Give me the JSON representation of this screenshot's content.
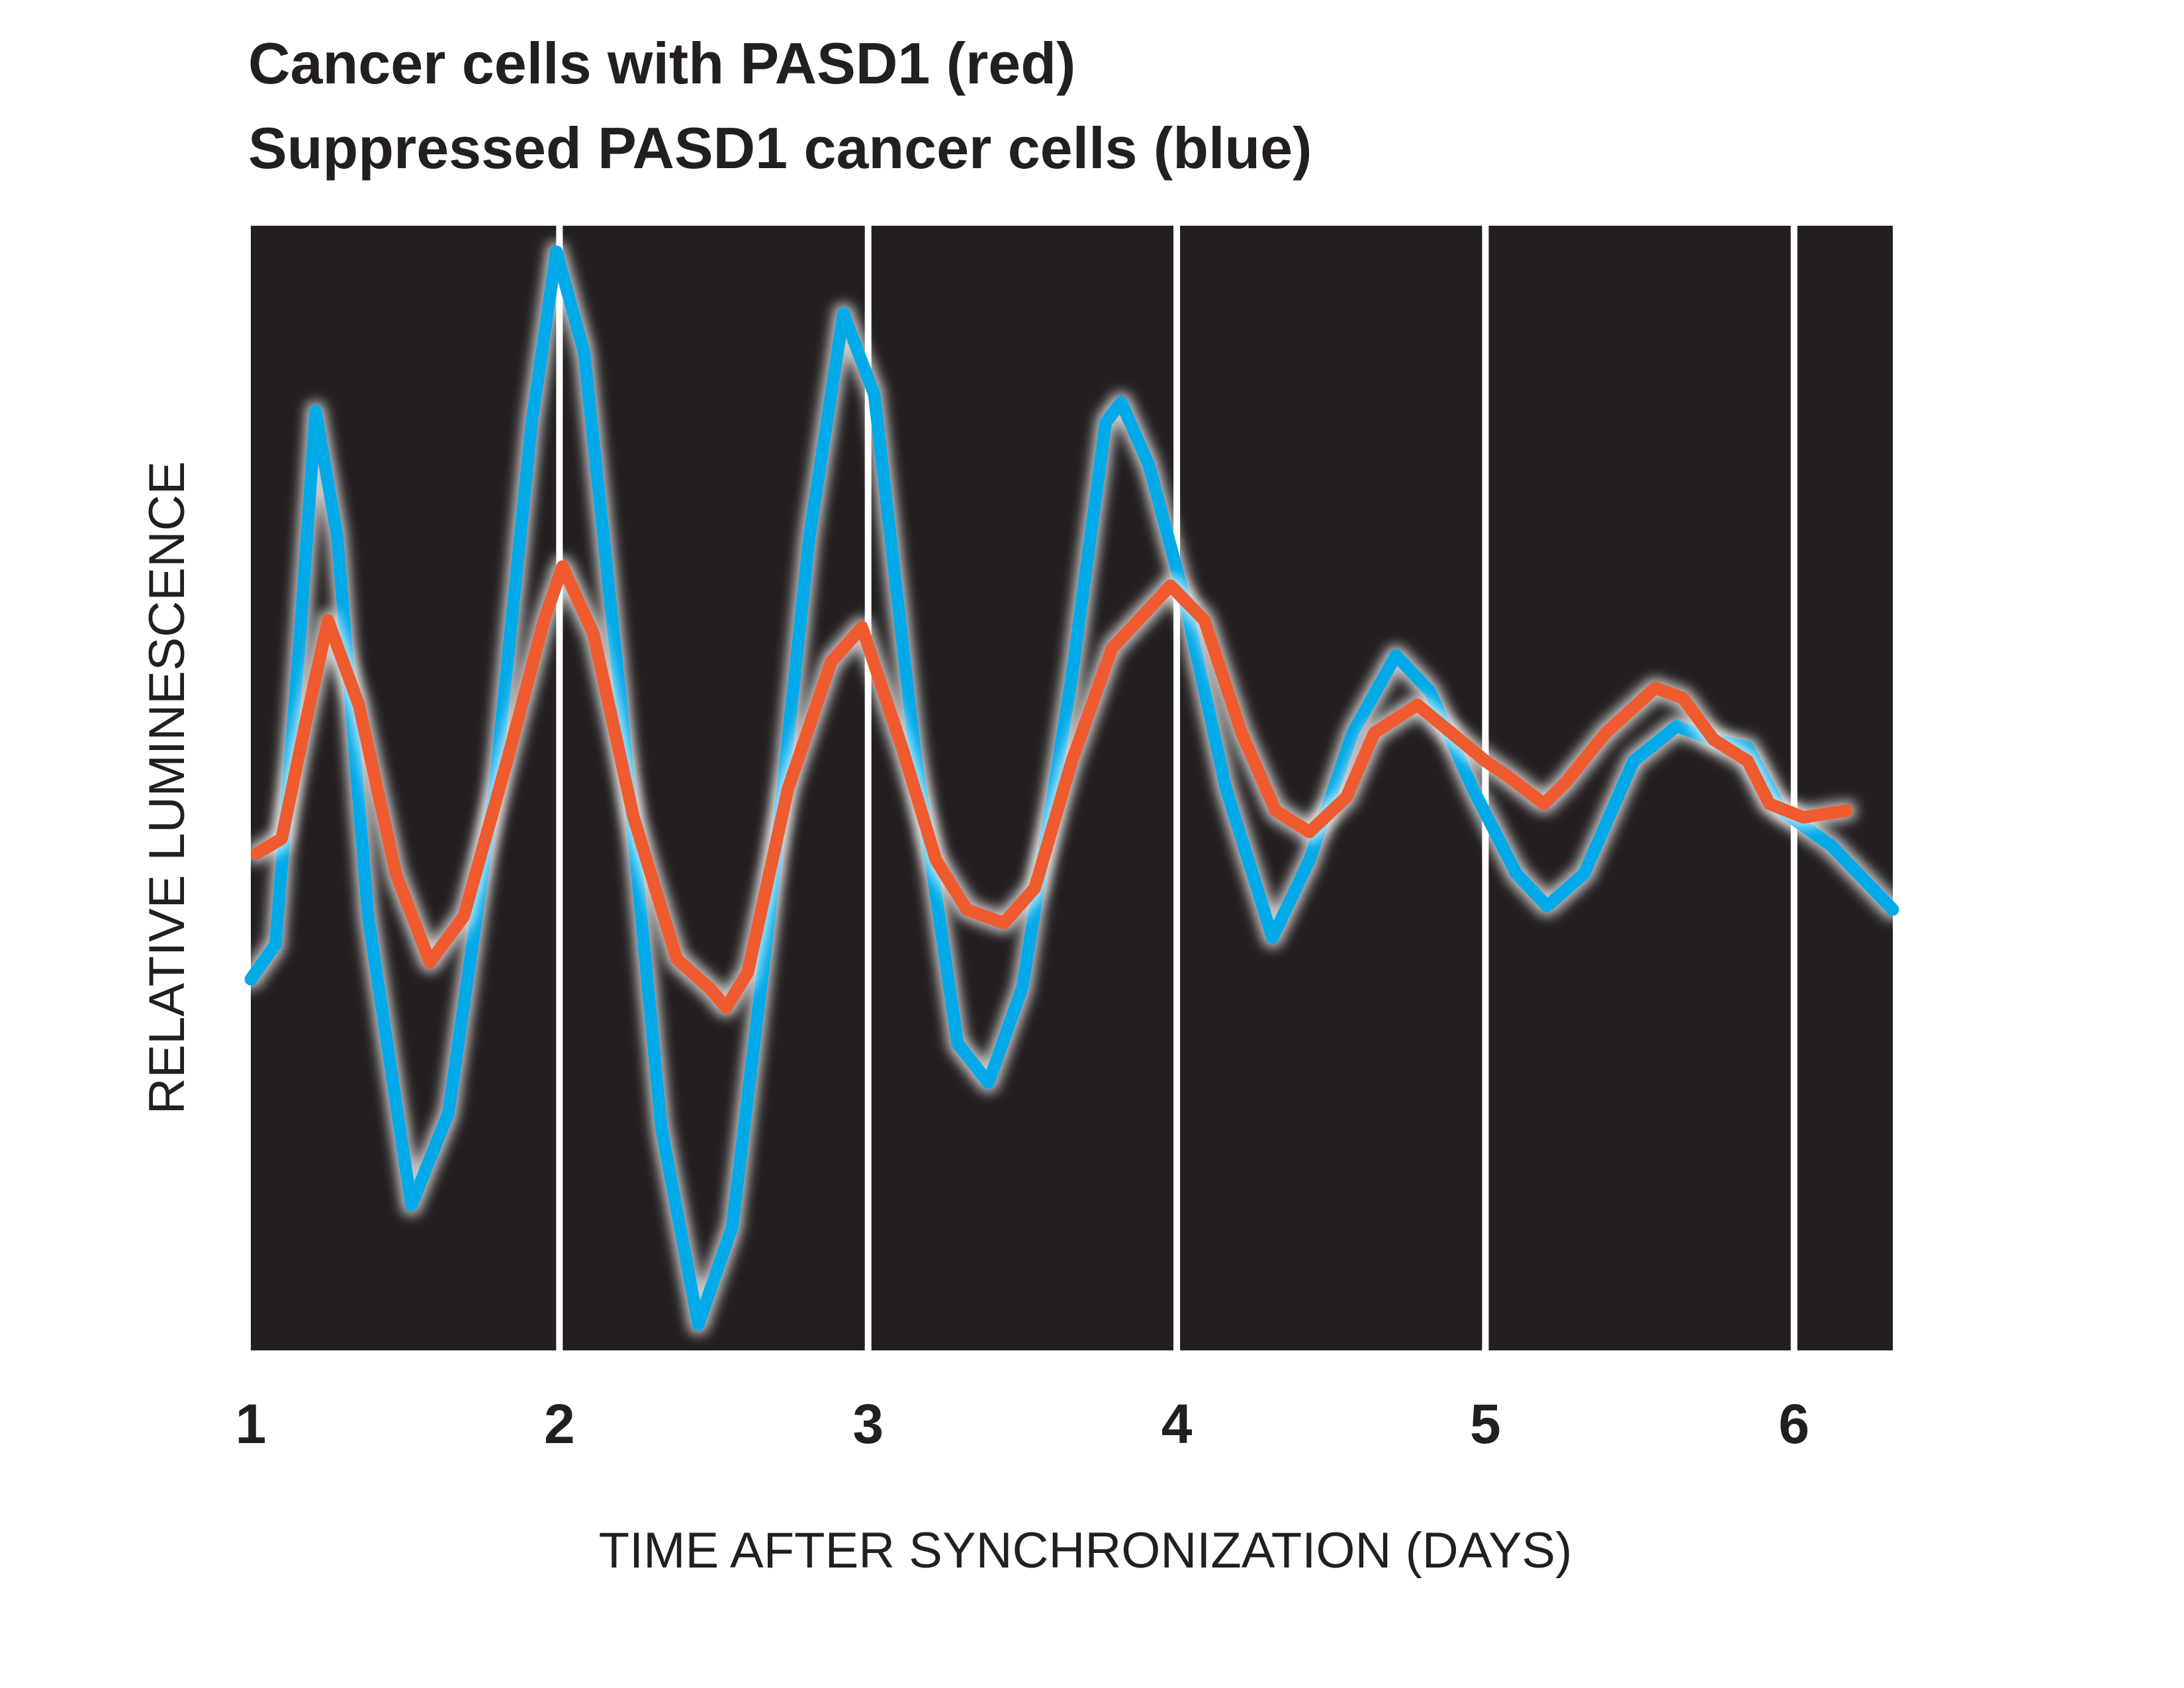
{
  "chart_data": {
    "type": "line",
    "title": [
      "Cancer cells with PASD1 (red)",
      "Suppressed PASD1 cancer cells (blue)"
    ],
    "xlabel": "TIME AFTER SYNCHRONIZATION (DAYS)",
    "ylabel": "RELATIVE LUMINESCENCE",
    "xlim": [
      1,
      6.32
    ],
    "xticks": [
      1,
      2,
      3,
      4,
      5,
      6
    ],
    "ylim": [
      0,
      100
    ],
    "grid": true,
    "background": "#231f20",
    "grid_color": "#ffffff",
    "series": [
      {
        "color": "#00a9e8",
        "x": [
          1.0,
          1.08,
          1.16,
          1.21,
          1.28,
          1.38,
          1.52,
          1.64,
          1.79,
          1.91,
          1.99,
          2.08,
          2.2,
          2.33,
          2.45,
          2.56,
          2.68,
          2.81,
          2.92,
          3.02,
          3.15,
          3.29,
          3.39,
          3.5,
          3.66,
          3.77,
          3.82,
          3.91,
          4.02,
          4.16,
          4.31,
          4.43,
          4.57,
          4.71,
          4.82,
          4.96,
          5.1,
          5.2,
          5.32,
          5.48,
          5.62,
          5.74,
          5.85,
          5.96,
          6.12,
          6.32
        ],
        "values": [
          33.0,
          36.1,
          63.7,
          83.5,
          72.4,
          38.6,
          12.9,
          21.1,
          49.9,
          82.5,
          97.7,
          88.7,
          57.4,
          19.8,
          2.3,
          11.0,
          38.6,
          72.4,
          92.2,
          85.0,
          53.6,
          27.3,
          23.8,
          32.3,
          59.9,
          82.5,
          84.3,
          78.7,
          67.4,
          49.9,
          36.7,
          43.6,
          54.9,
          61.8,
          58.6,
          49.9,
          42.4,
          39.5,
          42.4,
          52.4,
          55.5,
          54.3,
          53.6,
          48.0,
          44.9,
          39.2
        ]
      },
      {
        "color": "#ef5a2d",
        "x": [
          1.02,
          1.1,
          1.18,
          1.25,
          1.35,
          1.47,
          1.58,
          1.69,
          1.83,
          1.95,
          2.01,
          2.11,
          2.24,
          2.38,
          2.49,
          2.54,
          2.61,
          2.74,
          2.88,
          2.98,
          3.11,
          3.22,
          3.32,
          3.44,
          3.54,
          3.66,
          3.79,
          3.98,
          4.09,
          4.21,
          4.32,
          4.43,
          4.55,
          4.64,
          4.78,
          4.89,
          5.0,
          5.07,
          5.19,
          5.26,
          5.39,
          5.55,
          5.64,
          5.74,
          5.85,
          5.92,
          6.03,
          6.17
        ],
        "values": [
          44.2,
          45.5,
          56.1,
          64.9,
          57.4,
          42.4,
          34.5,
          38.6,
          52.4,
          64.9,
          69.7,
          63.7,
          47.4,
          34.8,
          32.1,
          30.5,
          33.6,
          49.9,
          61.2,
          64.3,
          53.6,
          43.6,
          39.2,
          38.0,
          41.1,
          52.4,
          62.4,
          68.0,
          64.9,
          54.9,
          48.0,
          46.1,
          49.2,
          54.9,
          57.4,
          54.9,
          52.4,
          51.1,
          48.6,
          50.5,
          54.9,
          58.9,
          58.0,
          54.3,
          52.4,
          48.6,
          47.4,
          48.0
        ]
      }
    ]
  }
}
